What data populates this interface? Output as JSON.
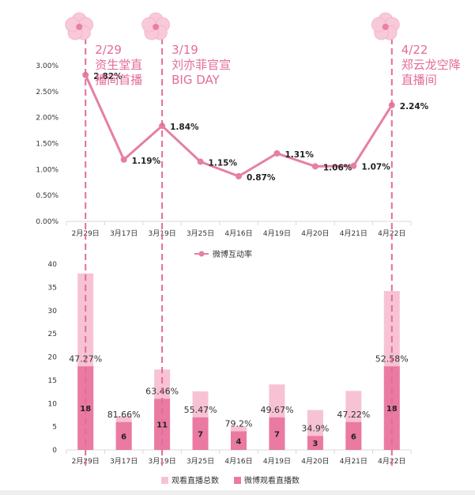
{
  "colors": {
    "line": "#e57fa6",
    "bar_total": "#f7c3d4",
    "bar_weibo": "#ea7aa1",
    "annotation": "#e36c9a",
    "grid": "#d9d9d9",
    "flower": "#f8c9d8"
  },
  "annotations": [
    {
      "date": "2/29",
      "line1": "资生堂直",
      "line2": "播间首播",
      "category_index": 0
    },
    {
      "date": "3/19",
      "line1": "刘亦菲官宣",
      "line2": "BIG DAY",
      "category_index": 2
    },
    {
      "date": "4/22",
      "line1": "郑云龙空降",
      "line2": "直播间",
      "category_index": 8
    }
  ],
  "chart_data": [
    {
      "type": "line",
      "categories": [
        "2月29日",
        "3月17日",
        "3月19日",
        "3月25日",
        "4月16日",
        "4月19日",
        "4月20日",
        "4月21日",
        "4月22日"
      ],
      "series": [
        {
          "name": "微博互动率",
          "values": [
            2.82,
            1.19,
            1.84,
            1.15,
            0.87,
            1.31,
            1.06,
            1.07,
            2.24
          ],
          "labels": [
            "2.82%",
            "1.19%",
            "1.84%",
            "1.15%",
            "0.87%",
            "1.31%",
            "1.06%",
            "1.07%",
            "2.24%"
          ]
        }
      ],
      "yticks": [
        "0.00%",
        "0.50%",
        "1.00%",
        "1.50%",
        "2.00%",
        "2.50%",
        "3.00%"
      ],
      "ylim": [
        0,
        3.0
      ],
      "legend": "bottom"
    },
    {
      "type": "bar",
      "stacked": false,
      "categories": [
        "2月29日",
        "3月17日",
        "3月19日",
        "3月25日",
        "4月16日",
        "4月19日",
        "4月20日",
        "4月21日",
        "4月22日"
      ],
      "series": [
        {
          "name": "观看直播总数",
          "values": [
            38,
            7.3,
            17.3,
            12.6,
            5.1,
            14.1,
            8.6,
            12.7,
            34.2
          ]
        },
        {
          "name": "微博观看直播数",
          "values": [
            18,
            6,
            11,
            7,
            4,
            7,
            3,
            6,
            18
          ]
        }
      ],
      "ratio_labels": [
        "47.27%",
        "81.66%",
        "63.46%",
        "55.47%",
        "79.2%",
        "49.67%",
        "34.9%",
        "47.22%",
        "52.58%"
      ],
      "yticks": [
        "0",
        "5",
        "10",
        "15",
        "20",
        "25",
        "30",
        "35",
        "40"
      ],
      "ylim": [
        0,
        40
      ],
      "legend": "bottom"
    }
  ]
}
